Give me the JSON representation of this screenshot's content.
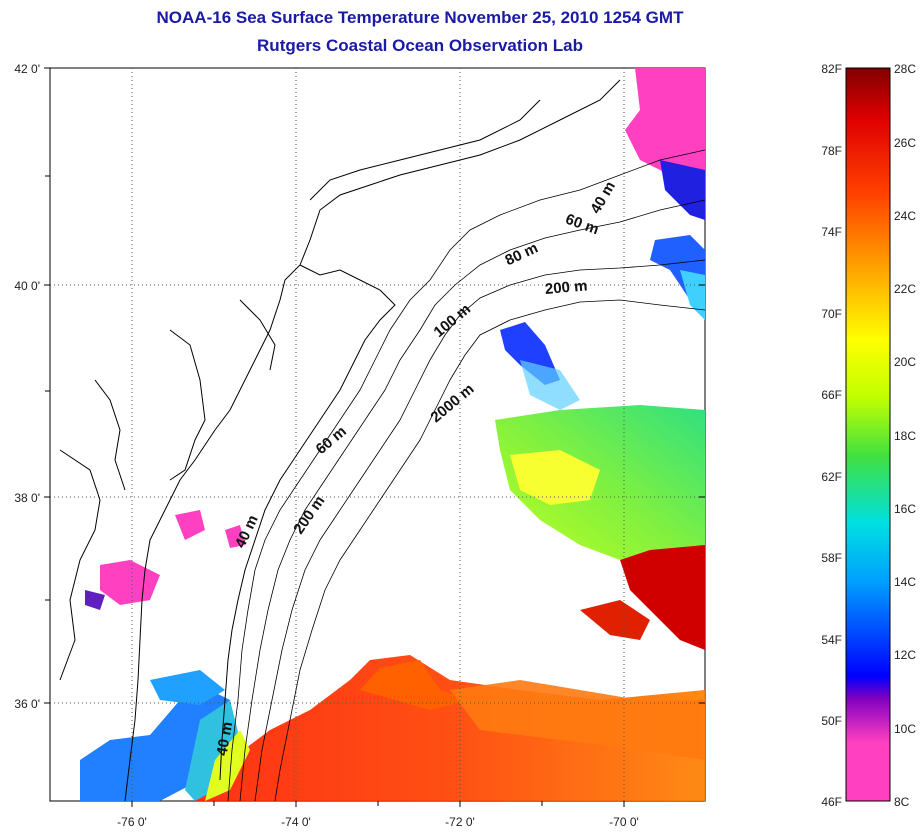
{
  "title": "NOAA-16 Sea Surface Temperature November 25, 2010 1254 GMT",
  "subtitle": "Rutgers Coastal Ocean Observation Lab",
  "map": {
    "lat_ticks": [
      "42 0'",
      "40 0'",
      "38 0'",
      "36 0'"
    ],
    "lon_ticks": [
      "-76 0'",
      "-74 0'",
      "-72 0'",
      "-70 0'"
    ],
    "depth_labels": [
      "40 m",
      "60 m",
      "80 m",
      "200 m",
      "100 m",
      "2000 m",
      "60 m",
      "200 m",
      "40 m",
      "40 m"
    ],
    "grid": "dotted"
  },
  "colorbar": {
    "fahrenheit_labels": [
      "82F",
      "78F",
      "74F",
      "70F",
      "66F",
      "62F",
      "58F",
      "54F",
      "50F",
      "46F"
    ],
    "celsius_labels": [
      "28C",
      "26C",
      "24C",
      "22C",
      "20C",
      "18C",
      "16C",
      "14C",
      "12C",
      "10C",
      "8C"
    ],
    "colors": [
      "#ff40c0",
      "#8000c0",
      "#0000ff",
      "#00a0ff",
      "#00e0e0",
      "#40e040",
      "#c0ff00",
      "#ffff00",
      "#ffa000",
      "#ff4000",
      "#e00000",
      "#800000"
    ]
  }
}
